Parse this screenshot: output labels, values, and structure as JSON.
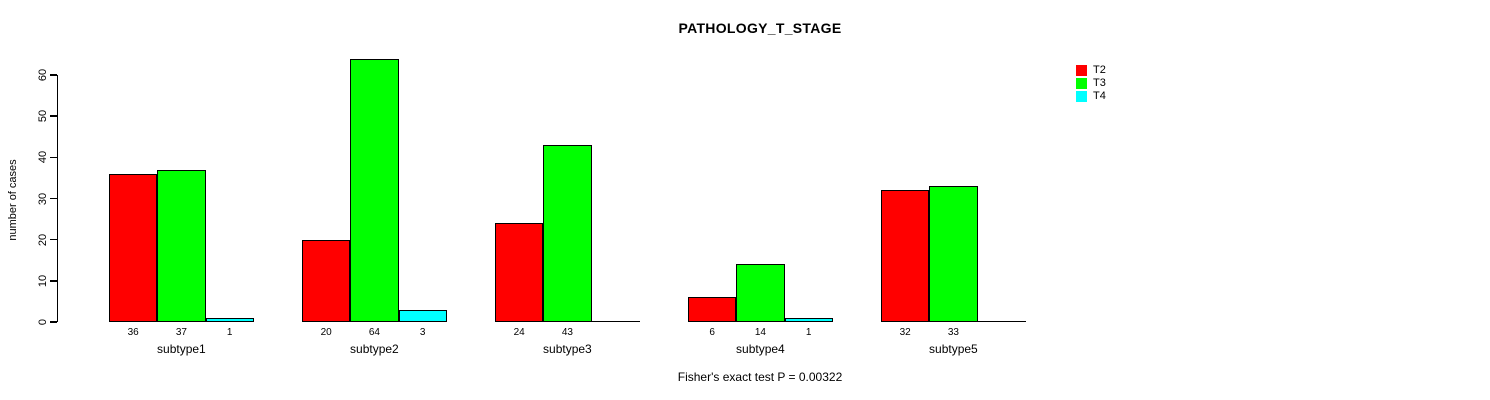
{
  "chart_data": {
    "type": "bar",
    "title": "PATHOLOGY_T_STAGE",
    "xlabel": "",
    "ylabel": "number of cases",
    "categories": [
      "subtype1",
      "subtype2",
      "subtype3",
      "subtype4",
      "subtype5"
    ],
    "series": [
      {
        "name": "T2",
        "color": "#ff0000",
        "values": [
          36,
          20,
          24,
          6,
          32
        ]
      },
      {
        "name": "T3",
        "color": "#00ff00",
        "values": [
          37,
          64,
          43,
          14,
          33
        ]
      },
      {
        "name": "T4",
        "color": "#00ffff",
        "values": [
          1,
          3,
          0,
          1,
          0
        ]
      }
    ],
    "bar_value_labels": [
      [
        "36",
        "37",
        "1"
      ],
      [
        "20",
        "64",
        "3"
      ],
      [
        "24",
        "43",
        ""
      ],
      [
        "6",
        "14",
        "1"
      ],
      [
        "32",
        "33",
        ""
      ]
    ],
    "ylim": [
      0,
      60
    ],
    "yticks": [
      0,
      10,
      20,
      30,
      40,
      50,
      60
    ],
    "grid": false,
    "legend_position": "top-right",
    "annotation": "Fisher's exact test P = 0.00322",
    "axis_color": "#000000"
  }
}
